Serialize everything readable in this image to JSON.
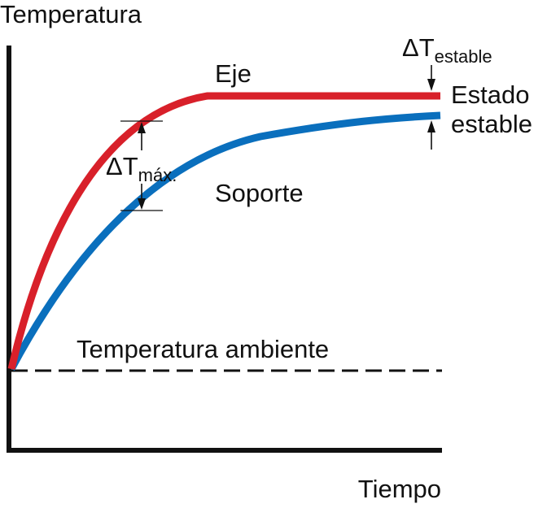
{
  "diagram": {
    "y_axis_label": "Temperatura",
    "x_axis_label": "Tiempo",
    "ambient_label": "Temperatura ambiente",
    "shaft_label": "Eje",
    "support_label": "Soporte",
    "steady_state_label_line1": "Estado",
    "steady_state_label_line2": "estable",
    "delta_symbol": "ΔT",
    "delta_max_subscript": "máx.",
    "delta_steady_subscript": "estable"
  },
  "colors": {
    "shaft_curve": "#d8202a",
    "support_curve": "#0a6fbd",
    "axes": "#111111",
    "ambient_line": "#111111"
  }
}
